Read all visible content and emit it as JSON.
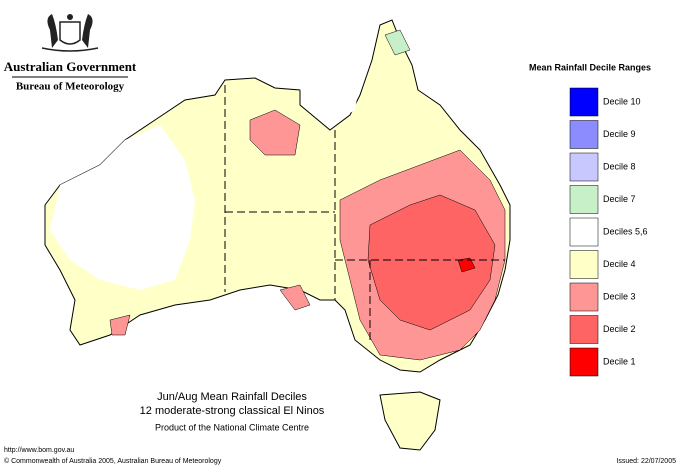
{
  "header": {
    "government": "Australian Government",
    "agency": "Bureau of Meteorology"
  },
  "legend": {
    "title": "Mean Rainfall Decile Ranges",
    "items": [
      {
        "label": "Decile 10",
        "color": "#0000ff"
      },
      {
        "label": "Decile 9",
        "color": "#8c8cff"
      },
      {
        "label": "Decile 8",
        "color": "#c8c8ff"
      },
      {
        "label": "Decile 7",
        "color": "#c8f0c8"
      },
      {
        "label": "Deciles 5,6",
        "color": "#ffffff"
      },
      {
        "label": "Decile 4",
        "color": "#ffffc8"
      },
      {
        "label": "Decile 3",
        "color": "#ff9696"
      },
      {
        "label": "Decile 2",
        "color": "#ff6464"
      },
      {
        "label": "Decile 1",
        "color": "#ff0000"
      }
    ]
  },
  "map": {
    "title": [
      "Jun/Aug Mean Rainfall Deciles",
      "12 moderate-strong classical El Ninos"
    ],
    "product": "Product of the National Climate Centre"
  },
  "footer": {
    "url": "http://www.bom.gov.au",
    "copyright": "© Commonwealth of Australia 2005, Australian Bureau of Meteorology",
    "issued": "Issued: 22/07/2005"
  }
}
